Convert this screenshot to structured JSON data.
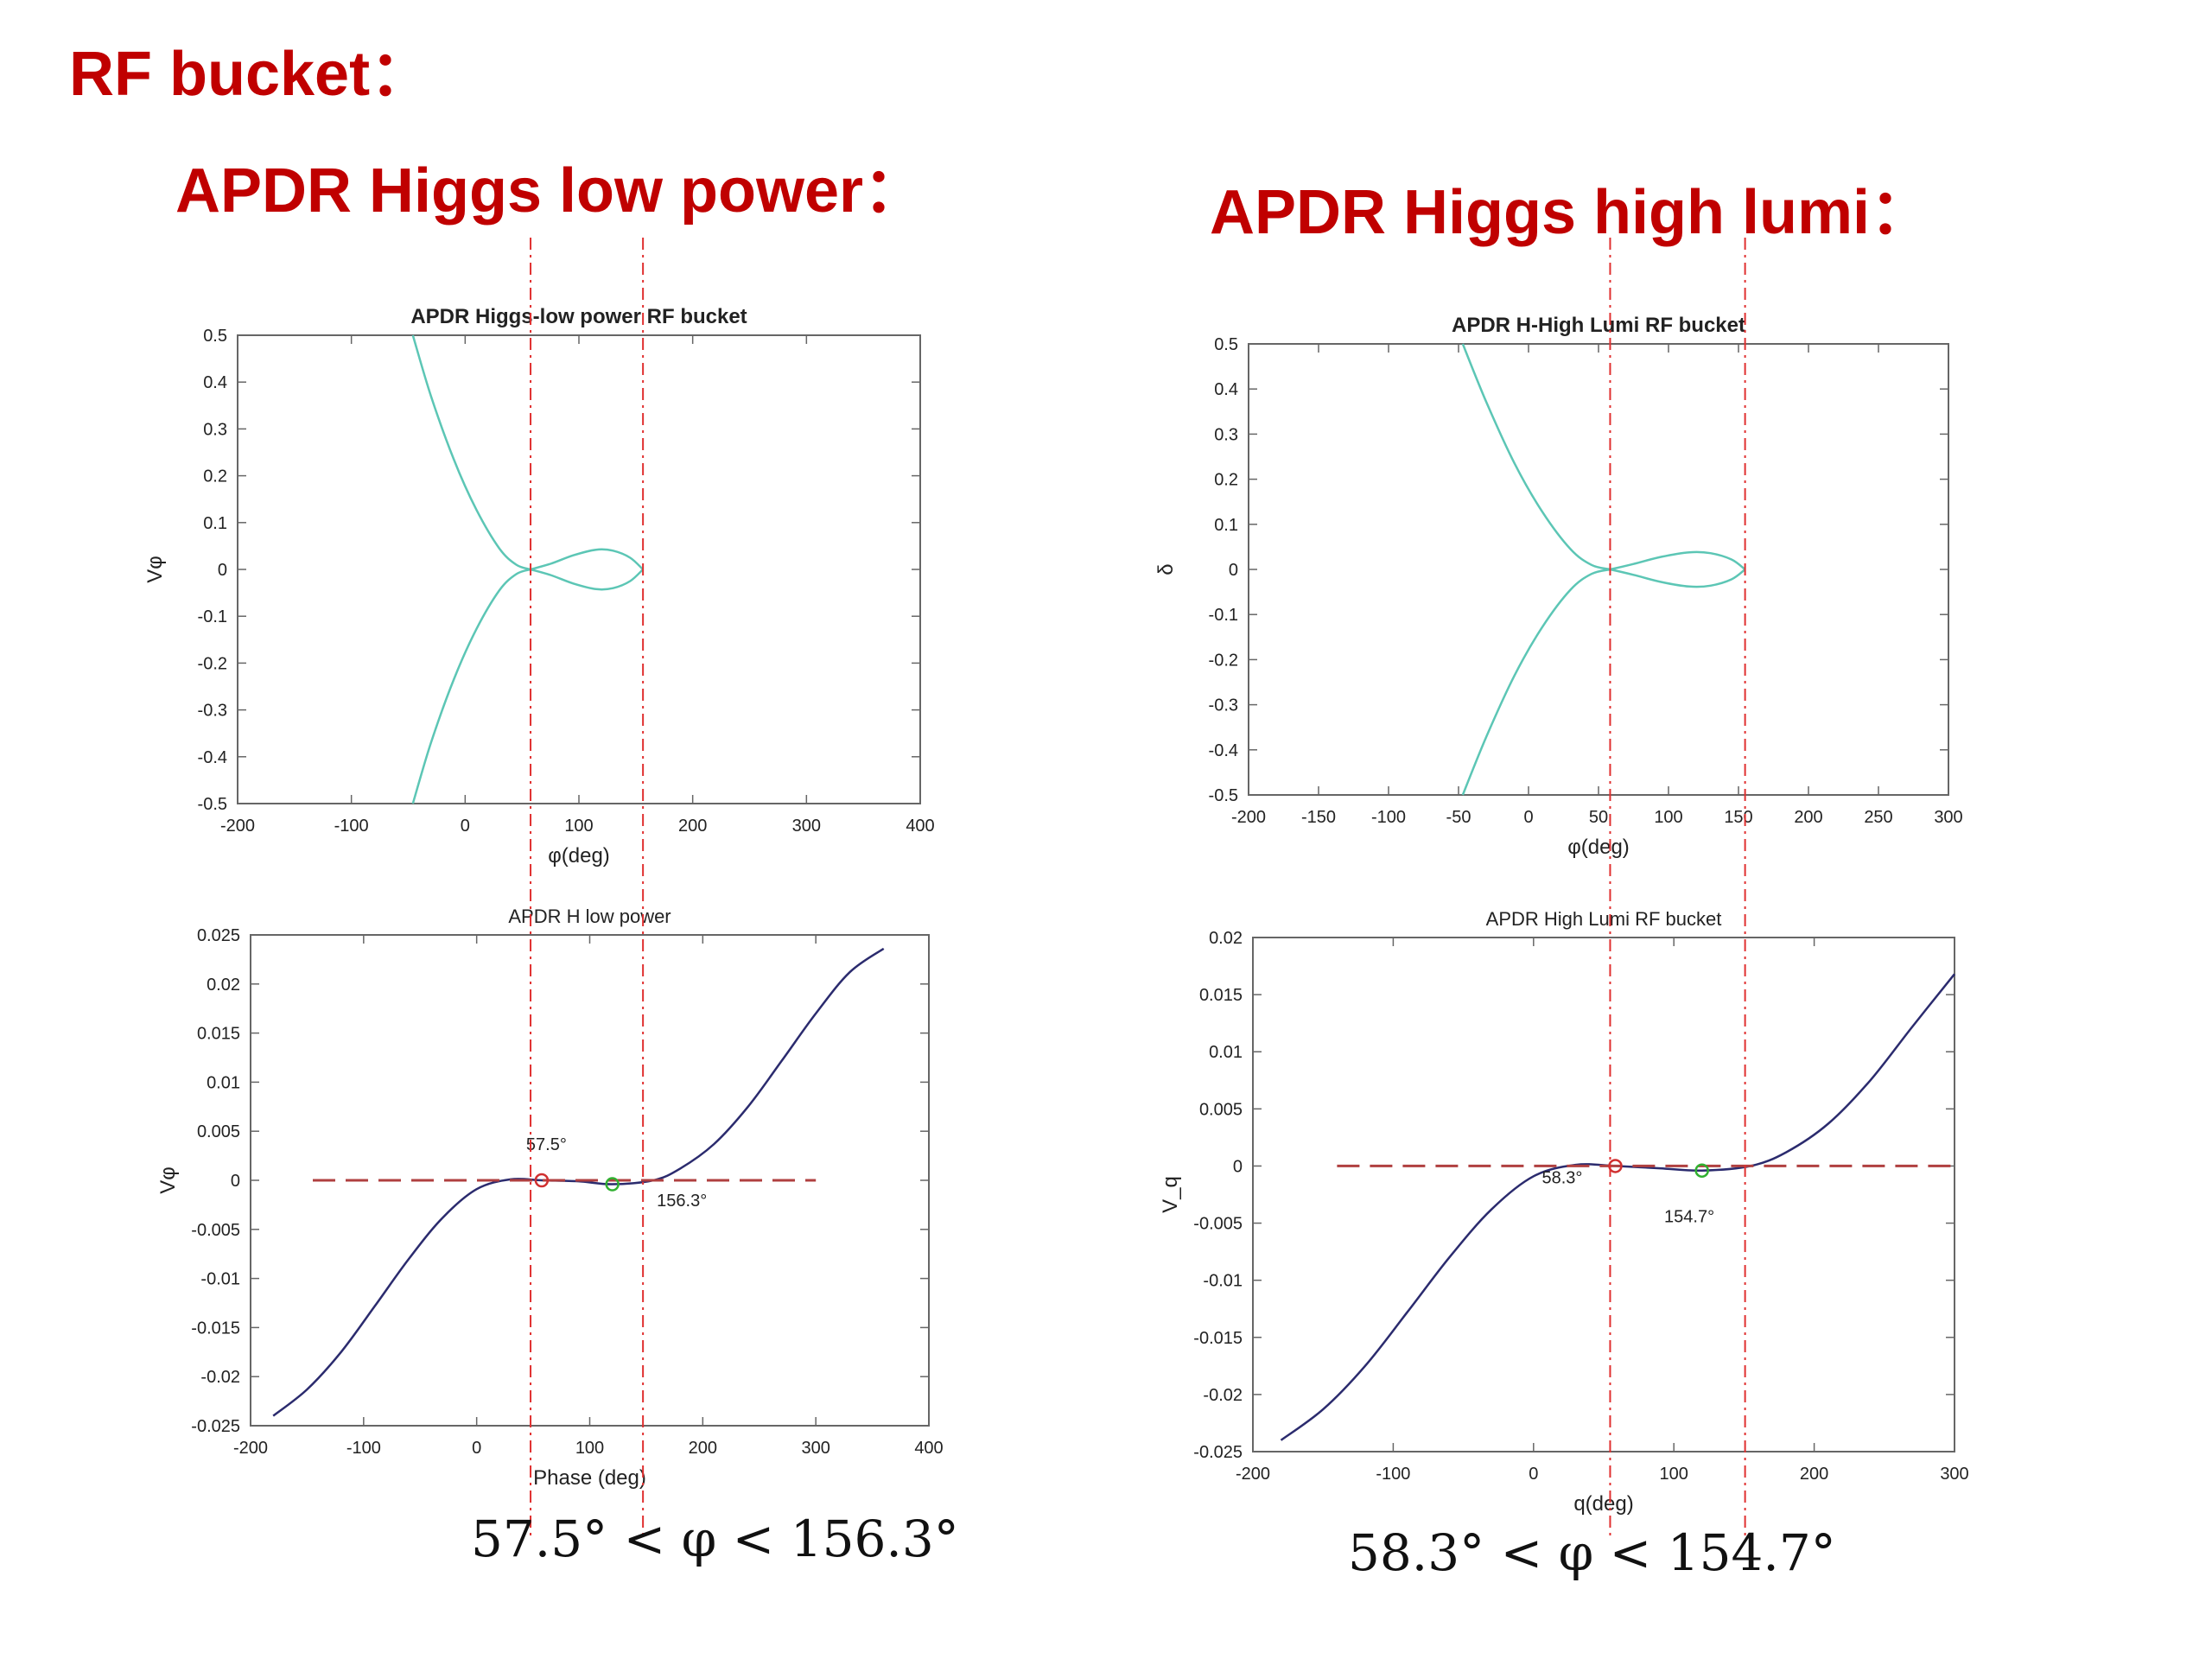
{
  "headings": {
    "main": "RF bucket：",
    "low_power": "APDR Higgs low power：",
    "high_lumi": "APDR Higgs high lumi："
  },
  "inequalities": {
    "low_power": "57.5° < φ < 156.3°",
    "high_lumi": "58.3° < φ < 154.7°"
  },
  "colors": {
    "heading": "#c00000",
    "separatrix": "#5cc6b5",
    "potential": "#2b2b6e",
    "reference": "#b04040",
    "marker_red": "#d03030",
    "marker_green": "#30b030",
    "guide": "#e03030"
  },
  "chart_data": [
    {
      "id": "c1",
      "type": "line",
      "title": "APDR Higgs-low power RF bucket",
      "xlabel": "φ(deg)",
      "ylabel": "Vφ",
      "xlim": [
        -200,
        400
      ],
      "ylim": [
        -0.5,
        0.5
      ],
      "xticks": [
        "-200",
        "-100",
        "0",
        "100",
        "200",
        "300",
        "400"
      ],
      "yticks": [
        "-0.5",
        "-0.4",
        "-0.3",
        "-0.2",
        "-0.1",
        "0",
        "0.1",
        "0.2",
        "0.3",
        "0.4",
        "0.5"
      ],
      "series": [
        {
          "x": [
            -46,
            -30,
            -10,
            10,
            30,
            45,
            57.5
          ],
          "y": [
            0.5,
            0.37,
            0.235,
            0.127,
            0.045,
            0.01,
            0
          ]
        },
        {
          "x": [
            -46,
            -30,
            -10,
            10,
            30,
            45,
            57.5
          ],
          "y": [
            -0.5,
            -0.37,
            -0.235,
            -0.127,
            -0.045,
            -0.01,
            0
          ]
        },
        {
          "x": [
            57.5,
            75,
            95,
            115,
            130,
            145,
            156.3
          ],
          "y": [
            0,
            0.012,
            0.03,
            0.042,
            0.04,
            0.025,
            0
          ]
        },
        {
          "x": [
            57.5,
            75,
            95,
            115,
            130,
            145,
            156.3
          ],
          "y": [
            0,
            -0.012,
            -0.03,
            -0.042,
            -0.04,
            -0.025,
            0
          ]
        }
      ]
    },
    {
      "id": "c2",
      "type": "line",
      "title": "APDR H-High Lumi RF bucket",
      "xlabel": "φ(deg)",
      "ylabel": "δ",
      "xlim": [
        -200,
        300
      ],
      "ylim": [
        -0.5,
        0.5
      ],
      "xticks": [
        "-200",
        "-150",
        "-100",
        "-50",
        "0",
        "50",
        "100",
        "150",
        "200",
        "250",
        "300"
      ],
      "yticks": [
        "-0.5",
        "-0.4",
        "-0.3",
        "-0.2",
        "-0.1",
        "0",
        "0.1",
        "0.2",
        "0.3",
        "0.4",
        "0.5"
      ],
      "series": [
        {
          "x": [
            -47,
            -30,
            -10,
            10,
            30,
            45,
            58.3
          ],
          "y": [
            0.5,
            0.37,
            0.235,
            0.127,
            0.045,
            0.01,
            0
          ]
        },
        {
          "x": [
            -47,
            -30,
            -10,
            10,
            30,
            45,
            58.3
          ],
          "y": [
            -0.5,
            -0.37,
            -0.235,
            -0.127,
            -0.045,
            -0.01,
            0
          ]
        },
        {
          "x": [
            58.3,
            75,
            95,
            115,
            130,
            145,
            154.7
          ],
          "y": [
            0,
            0.012,
            0.028,
            0.038,
            0.036,
            0.022,
            0
          ]
        },
        {
          "x": [
            58.3,
            75,
            95,
            115,
            130,
            145,
            154.7
          ],
          "y": [
            0,
            -0.012,
            -0.028,
            -0.038,
            -0.036,
            -0.022,
            0
          ]
        }
      ]
    },
    {
      "id": "c3",
      "type": "line",
      "title": "APDR H low power",
      "xlabel": "Phase (deg)",
      "ylabel": "Vφ",
      "xlim": [
        -200,
        400
      ],
      "ylim": [
        -0.025,
        0.025
      ],
      "xticks": [
        "-200",
        "-100",
        "0",
        "100",
        "200",
        "300",
        "400"
      ],
      "yticks": [
        "-0.025",
        "-0.02",
        "-0.015",
        "-0.01",
        "-0.005",
        "0",
        "0.005",
        "0.01",
        "0.015",
        "0.02",
        "0.025"
      ],
      "series": [
        {
          "x": [
            -180,
            -150,
            -120,
            -90,
            -60,
            -30,
            0,
            30,
            57.5,
            90,
            120,
            156.3,
            180,
            210,
            240,
            270,
            300,
            330,
            360
          ],
          "y": [
            -0.024,
            -0.0213,
            -0.0175,
            -0.0128,
            -0.008,
            -0.0038,
            -0.0009,
            0.0001,
            0,
            -0.0001,
            -0.0004,
            0,
            0.0012,
            0.0037,
            0.0075,
            0.0122,
            0.017,
            0.0212,
            0.0236
          ]
        },
        {
          "x": [
            -145,
            300
          ],
          "y": [
            0,
            0
          ],
          "style": "dashed"
        }
      ],
      "markers": [
        {
          "x": 57.5,
          "y": 0,
          "color": "red"
        },
        {
          "x": 120,
          "y": -0.0004,
          "color": "green"
        }
      ],
      "annotations": [
        {
          "text": "57.5°",
          "x": 57.5,
          "y": 0
        },
        {
          "text": "156.3°",
          "x": 156.3,
          "y": 0
        }
      ]
    },
    {
      "id": "c4",
      "type": "line",
      "title": "APDR High Lumi RF bucket",
      "xlabel": "q(deg)",
      "ylabel": "V_q",
      "xlim": [
        -200,
        300
      ],
      "ylim": [
        -0.025,
        0.02
      ],
      "xticks": [
        "-200",
        "-100",
        "0",
        "100",
        "200",
        "300"
      ],
      "yticks": [
        "-0.025",
        "-0.02",
        "-0.015",
        "-0.01",
        "-0.005",
        "0",
        "0.005",
        "0.01",
        "0.015",
        "0.02"
      ],
      "series": [
        {
          "x": [
            -180,
            -150,
            -120,
            -90,
            -60,
            -30,
            0,
            30,
            58.3,
            90,
            120,
            154.7,
            180,
            210,
            240,
            270,
            300
          ],
          "y": [
            -0.024,
            -0.0213,
            -0.0175,
            -0.0128,
            -0.008,
            -0.0038,
            -0.0009,
            0.0001,
            0,
            -0.0002,
            -0.0004,
            0,
            0.0012,
            0.0037,
            0.0075,
            0.0122,
            0.0168
          ]
        },
        {
          "x": [
            -140,
            300
          ],
          "y": [
            0,
            0
          ],
          "style": "dashed"
        }
      ],
      "markers": [
        {
          "x": 58.3,
          "y": 0,
          "color": "red"
        },
        {
          "x": 120,
          "y": -0.0004,
          "color": "green"
        }
      ],
      "annotations": [
        {
          "text": "58.3°",
          "x": 58.3,
          "y": 0
        },
        {
          "text": "154.7°",
          "x": 154.7,
          "y": 0
        }
      ]
    }
  ],
  "guides": {
    "low_power": [
      57.5,
      156.3
    ],
    "high_lumi": [
      58.3,
      154.7
    ]
  }
}
